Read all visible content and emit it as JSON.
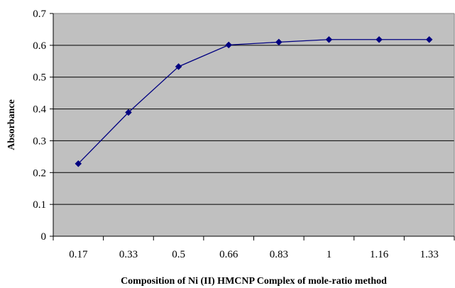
{
  "chart_data": {
    "type": "line",
    "title": "",
    "xlabel": "Composition of Ni (II) HMCNP Complex of mole-ratio method",
    "ylabel": "Absorbance",
    "categories": [
      "0.17",
      "0.33",
      "0.5",
      "0.66",
      "0.83",
      "1",
      "1.16",
      "1.33"
    ],
    "series": [
      {
        "values": [
          0.228,
          0.389,
          0.533,
          0.601,
          0.61,
          0.618,
          0.618,
          0.618
        ]
      }
    ],
    "ylim": [
      0,
      0.7
    ],
    "yticks": [
      "0",
      "0.1",
      "0.2",
      "0.3",
      "0.4",
      "0.5",
      "0.6",
      "0.7"
    ],
    "grid": true,
    "legend": "none",
    "colors": {
      "plot_background": "#c0c0c0",
      "gridline": "#000000",
      "series": "#000080",
      "marker": "#000080"
    }
  }
}
